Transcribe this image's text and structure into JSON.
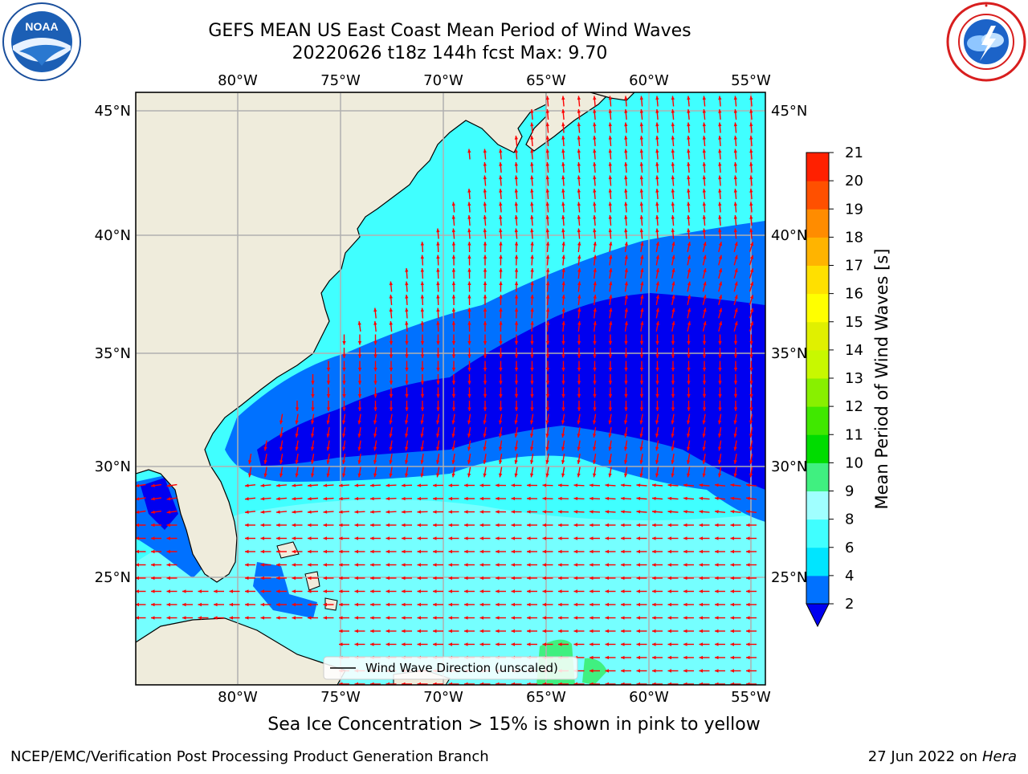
{
  "title": {
    "line1": "GEFS MEAN US East Coast Mean Period of Wind Waves",
    "line2": "20220626 t18z 144h fcst   Max: 9.70"
  },
  "logos": {
    "left": "noaa-logo",
    "left_text": "NOAA",
    "right": "nws-logo"
  },
  "map": {
    "lon_labels": [
      "80°W",
      "75°W",
      "70°W",
      "65°W",
      "60°W",
      "55°W"
    ],
    "lat_labels": [
      "45°N",
      "40°N",
      "35°N",
      "30°N",
      "25°N"
    ],
    "legend_label": "Wind Wave Direction (unscaled)",
    "colors": {
      "land": "#efecdc",
      "vector": "#ff0000",
      "grid": "#b0b0b0"
    }
  },
  "colorbar": {
    "label": "Mean Period of Wind Waves [s]",
    "ticks": [
      "2",
      "4",
      "6",
      "8",
      "9",
      "10",
      "11",
      "12",
      "13",
      "14",
      "15",
      "16",
      "17",
      "18",
      "19",
      "20",
      "21"
    ],
    "colors": [
      "#0071ff",
      "#00e5ff",
      "#40ffff",
      "#a0ffff",
      "#40f080",
      "#00dc00",
      "#40e800",
      "#88f000",
      "#c8f800",
      "#e0f000",
      "#ffff00",
      "#ffe000",
      "#ffb400",
      "#ff8c00",
      "#ff5000",
      "#ff2000",
      "#ff0000"
    ],
    "extend_color": "#0000f0"
  },
  "note": "Sea Ice Concentration > 15% is shown in pink to yellow",
  "footer": {
    "left": "NCEP/EMC/Verification Post Processing Product Generation Branch",
    "right_date": "27 Jun 2022 on",
    "right_system": "Hera"
  }
}
